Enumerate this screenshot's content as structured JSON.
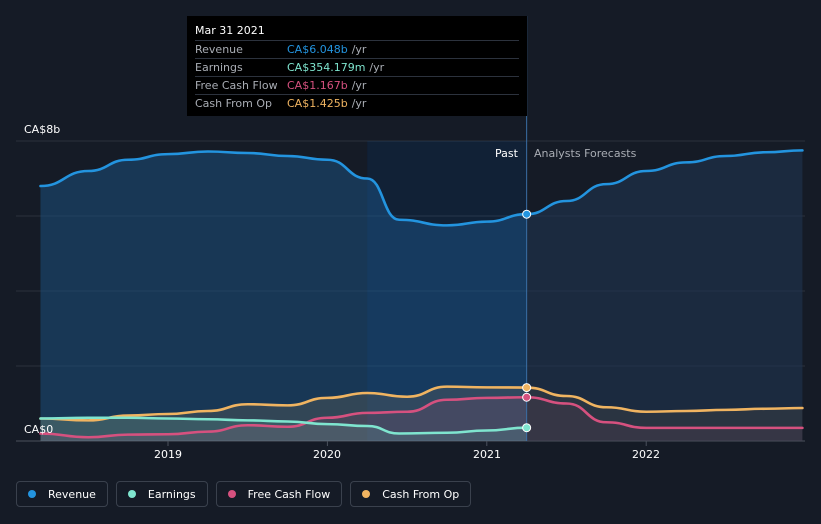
{
  "tooltip": {
    "date": "Mar 31 2021",
    "rows": [
      {
        "label": "Revenue",
        "value": "CA$6.048b",
        "unit": "/yr",
        "color": "#2394df"
      },
      {
        "label": "Earnings",
        "value": "CA$354.179m",
        "unit": "/yr",
        "color": "#7fe5cf"
      },
      {
        "label": "Free Cash Flow",
        "value": "CA$1.167b",
        "unit": "/yr",
        "color": "#d6517f"
      },
      {
        "label": "Cash From Op",
        "value": "CA$1.425b",
        "unit": "/yr",
        "color": "#f0b461"
      }
    ]
  },
  "labels": {
    "y_top": "CA$8b",
    "y_bottom": "CA$0",
    "past": "Past",
    "forecast": "Analysts Forecasts"
  },
  "legend": [
    {
      "label": "Revenue",
      "color": "#2394df"
    },
    {
      "label": "Earnings",
      "color": "#7fe5cf"
    },
    {
      "label": "Free Cash Flow",
      "color": "#d6517f"
    },
    {
      "label": "Cash From Op",
      "color": "#f0b461"
    }
  ],
  "chart_data": {
    "type": "area",
    "ylim": [
      0,
      8
    ],
    "xlim": [
      2018.2,
      2022.98
    ],
    "x_ticks": [
      2019,
      2020,
      2021,
      2022
    ],
    "x_tick_labels": [
      "2019",
      "2020",
      "2021",
      "2022"
    ],
    "y_ticks": [
      0,
      2,
      4,
      6,
      8
    ],
    "highlight_range": [
      2020.25,
      2021.25
    ],
    "past_end": 2021.25,
    "grid": true,
    "legend_position": "bottom-left",
    "series": [
      {
        "name": "Revenue",
        "color": "#2394df",
        "past": [
          [
            2018.2,
            6.8
          ],
          [
            2018.5,
            7.2
          ],
          [
            2018.75,
            7.5
          ],
          [
            2019.0,
            7.65
          ],
          [
            2019.25,
            7.72
          ],
          [
            2019.5,
            7.68
          ],
          [
            2019.75,
            7.6
          ],
          [
            2020.0,
            7.5
          ],
          [
            2020.25,
            7.0
          ],
          [
            2020.45,
            5.9
          ],
          [
            2020.75,
            5.75
          ],
          [
            2021.0,
            5.85
          ],
          [
            2021.25,
            6.048
          ]
        ],
        "forecast": [
          [
            2021.25,
            6.048
          ],
          [
            2021.5,
            6.4
          ],
          [
            2021.75,
            6.85
          ],
          [
            2022.0,
            7.2
          ],
          [
            2022.25,
            7.43
          ],
          [
            2022.5,
            7.6
          ],
          [
            2022.75,
            7.7
          ],
          [
            2022.98,
            7.75
          ]
        ]
      },
      {
        "name": "Earnings",
        "color": "#7fe5cf",
        "past": [
          [
            2018.2,
            0.6
          ],
          [
            2018.5,
            0.62
          ],
          [
            2018.75,
            0.62
          ],
          [
            2019.0,
            0.6
          ],
          [
            2019.25,
            0.58
          ],
          [
            2019.5,
            0.55
          ],
          [
            2019.75,
            0.52
          ],
          [
            2020.0,
            0.45
          ],
          [
            2020.25,
            0.4
          ],
          [
            2020.45,
            0.2
          ],
          [
            2020.75,
            0.22
          ],
          [
            2021.0,
            0.28
          ],
          [
            2021.25,
            0.354
          ]
        ],
        "forecast": []
      },
      {
        "name": "Free Cash Flow",
        "color": "#d6517f",
        "past": [
          [
            2018.2,
            0.2
          ],
          [
            2018.5,
            0.1
          ],
          [
            2018.75,
            0.17
          ],
          [
            2019.0,
            0.18
          ],
          [
            2019.25,
            0.25
          ],
          [
            2019.5,
            0.42
          ],
          [
            2019.75,
            0.38
          ],
          [
            2020.0,
            0.62
          ],
          [
            2020.25,
            0.75
          ],
          [
            2020.5,
            0.78
          ],
          [
            2020.75,
            1.1
          ],
          [
            2021.0,
            1.15
          ],
          [
            2021.25,
            1.167
          ]
        ],
        "forecast": [
          [
            2021.25,
            1.167
          ],
          [
            2021.5,
            1.0
          ],
          [
            2021.75,
            0.5
          ],
          [
            2022.0,
            0.35
          ],
          [
            2022.25,
            0.35
          ],
          [
            2022.5,
            0.35
          ],
          [
            2022.75,
            0.35
          ],
          [
            2022.98,
            0.35
          ]
        ]
      },
      {
        "name": "Cash From Op",
        "color": "#f0b461",
        "past": [
          [
            2018.2,
            0.6
          ],
          [
            2018.5,
            0.55
          ],
          [
            2018.75,
            0.68
          ],
          [
            2019.0,
            0.72
          ],
          [
            2019.25,
            0.8
          ],
          [
            2019.5,
            0.98
          ],
          [
            2019.75,
            0.95
          ],
          [
            2020.0,
            1.15
          ],
          [
            2020.25,
            1.28
          ],
          [
            2020.5,
            1.18
          ],
          [
            2020.75,
            1.45
          ],
          [
            2021.0,
            1.43
          ],
          [
            2021.25,
            1.425
          ]
        ],
        "forecast": [
          [
            2021.25,
            1.425
          ],
          [
            2021.5,
            1.2
          ],
          [
            2021.75,
            0.9
          ],
          [
            2022.0,
            0.78
          ],
          [
            2022.25,
            0.8
          ],
          [
            2022.5,
            0.83
          ],
          [
            2022.75,
            0.86
          ],
          [
            2022.98,
            0.88
          ]
        ]
      }
    ]
  }
}
